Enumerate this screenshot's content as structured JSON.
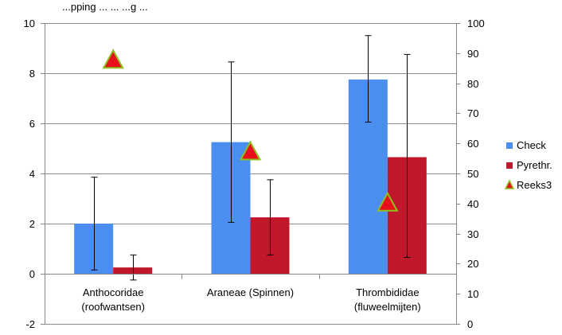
{
  "chart_data": {
    "type": "bar",
    "title": "...pping ... ... ...g ...",
    "categories": [
      [
        "Anthocoridae",
        "(roofwantsen)"
      ],
      [
        "Araneae (Spinnen)"
      ],
      [
        "Thrombididae",
        "(fluweelmijten)"
      ]
    ],
    "series": [
      {
        "name": "Check",
        "type": "bar",
        "axis": "left",
        "color": "#4a8ff0",
        "values": [
          2.0,
          5.25,
          7.75
        ],
        "error_low": [
          0.15,
          2.05,
          6.05
        ],
        "error_high": [
          3.85,
          8.45,
          9.5
        ]
      },
      {
        "name": "Pyrethr.",
        "type": "bar",
        "axis": "left",
        "color": "#c0182a",
        "values": [
          0.25,
          2.25,
          4.65
        ],
        "error_low": [
          -0.25,
          0.75,
          0.65
        ],
        "error_high": [
          0.75,
          3.75,
          8.75
        ]
      },
      {
        "name": "Reeks3",
        "type": "marker",
        "axis": "right",
        "color": "#e8101a",
        "outline": "#8fbf1f",
        "values": [
          87.5,
          57,
          40
        ]
      }
    ],
    "left_axis": {
      "min": -2,
      "max": 10,
      "step": 2,
      "ticks": [
        "-2",
        "0",
        "2",
        "4",
        "6",
        "8",
        "10"
      ]
    },
    "right_axis": {
      "min": 0,
      "max": 100,
      "step": 10,
      "ticks": [
        "0",
        "10",
        "20",
        "30",
        "40",
        "50",
        "60",
        "70",
        "80",
        "90",
        "100"
      ]
    },
    "grid": true,
    "legend_position": "right"
  }
}
